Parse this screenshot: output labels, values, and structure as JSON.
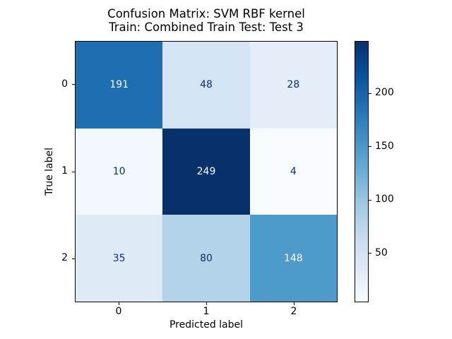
{
  "figure": {
    "background": "#ffffff",
    "title_line1": "Confusion Matrix: SVM RBF kernel",
    "title_line2": "Train: Combined Train Test: Test 3"
  },
  "chart_data": {
    "type": "heatmap",
    "title": "Confusion Matrix: SVM RBF kernel\nTrain: Combined Train Test: Test 3",
    "xlabel": "Predicted label",
    "ylabel": "True label",
    "x_tick_labels": [
      "0",
      "1",
      "2"
    ],
    "y_tick_labels": [
      "0",
      "1",
      "2"
    ],
    "matrix": [
      [
        191,
        48,
        28
      ],
      [
        10,
        249,
        4
      ],
      [
        35,
        80,
        148
      ]
    ],
    "vmin": 4,
    "vmax": 249,
    "colormap": "Blues",
    "colormap_stops": [
      {
        "t": 0.0,
        "color": "#f7fbff"
      },
      {
        "t": 0.125,
        "color": "#deebf7"
      },
      {
        "t": 0.25,
        "color": "#c6dbef"
      },
      {
        "t": 0.375,
        "color": "#9ecae1"
      },
      {
        "t": 0.5,
        "color": "#6baed6"
      },
      {
        "t": 0.625,
        "color": "#4292c6"
      },
      {
        "t": 0.75,
        "color": "#2171b5"
      },
      {
        "t": 0.875,
        "color": "#08519c"
      },
      {
        "t": 1.0,
        "color": "#08306b"
      }
    ],
    "colorbar_ticks": [
      50,
      100,
      150,
      200
    ],
    "cell_text_color_light": "#ffffff",
    "cell_text_color_dark": "#08306b",
    "legend_position": "right-colorbar",
    "grid": false
  }
}
